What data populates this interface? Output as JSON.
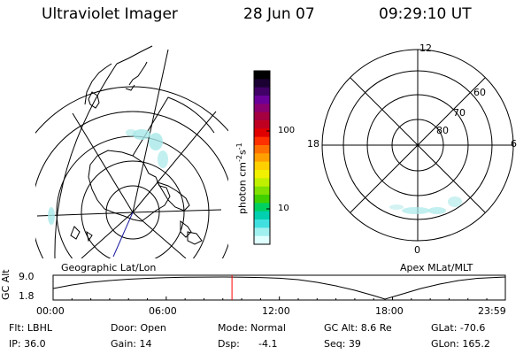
{
  "header": {
    "instrument": "Ultraviolet Imager",
    "date": "28 Jun 07",
    "time": "09:29:10 UT"
  },
  "colorbar": {
    "unit_base": "photon cm",
    "unit_exp1": "-2",
    "unit_mid": "s",
    "unit_exp2": "-1",
    "ticks": [
      "100",
      "10"
    ],
    "colors": [
      "#000000",
      "#1a0033",
      "#400066",
      "#6a0099",
      "#8a0070",
      "#a50040",
      "#c00020",
      "#e00000",
      "#ff3000",
      "#ff7000",
      "#ffa000",
      "#ffd000",
      "#f0f000",
      "#c0f000",
      "#80e000",
      "#40d000",
      "#00d060",
      "#00d0b0",
      "#40e0e0",
      "#a0f0f0",
      "#e0ffff"
    ]
  },
  "left_map": {
    "caption": "Geographic Lat/Lon"
  },
  "right_map": {
    "caption": "Apex MLat/MLT",
    "mlt_labels": {
      "top": "12",
      "left": "18",
      "right": "6",
      "bottom": "0"
    },
    "lat_labels": [
      "60",
      "70",
      "80"
    ]
  },
  "altitude_plot": {
    "ylabel": "GC Alt",
    "yticks": [
      "9.0",
      "1.8"
    ],
    "xticks": [
      "00:00",
      "06:00",
      "12:00",
      "18:00",
      "23:59"
    ],
    "marker_color": "#ff0000",
    "marker_time_hours": 9.486
  },
  "info": {
    "filter": "Flt: LBHL",
    "door": "Door: Open",
    "mode": "Mode: Normal",
    "gc_alt": "GC Alt: 8.6 Re",
    "glat": "GLat: -70.6",
    "ip": "IP: 36.0",
    "gain": "Gain: 14",
    "dsp_label": "Dsp:",
    "dsp_value": "-4.1",
    "seq": "Seq: 39",
    "glon": "GLon: 165.2"
  }
}
